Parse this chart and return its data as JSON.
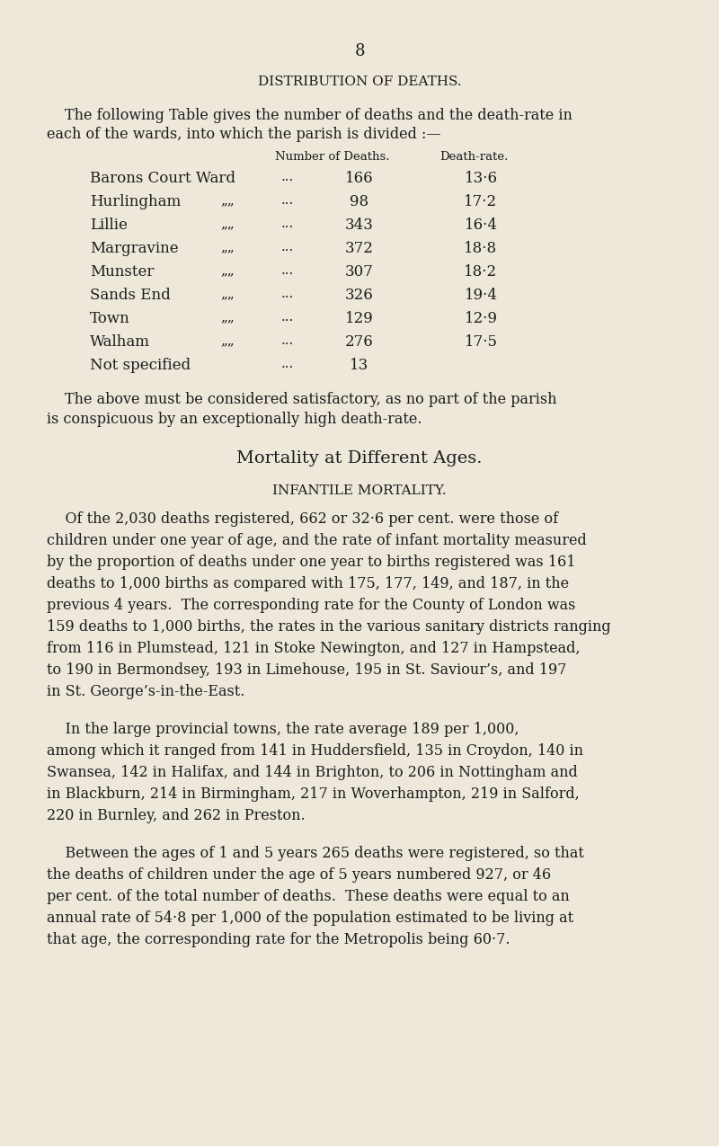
{
  "page_number": "8",
  "background_color": "#ede8da",
  "text_color": "#1c1c1c",
  "section_title": "DISTRIBUTION OF DEATHS.",
  "table_header_col1": "Number of Deaths.",
  "table_header_col2": "Death-rate.",
  "table_rows": [
    [
      "Barons Court Ward",
      "",
      "166",
      "13·6"
    ],
    [
      "Hurlingham",
      "„„",
      "98",
      "17·2"
    ],
    [
      "Lillie",
      "„„",
      "343",
      "16·4"
    ],
    [
      "Margravine",
      "„„",
      "372",
      "18·8"
    ],
    [
      "Munster",
      "„„",
      "307",
      "18·2"
    ],
    [
      "Sands End",
      "„„",
      "326",
      "19·4"
    ],
    [
      "Town",
      "„„",
      "129",
      "12·9"
    ],
    [
      "Walham",
      "„„",
      "276",
      "17·5"
    ],
    [
      "Not specified",
      "",
      "13",
      ""
    ]
  ],
  "intro_lines": [
    "The following Table gives the number of deaths and the death-rate in",
    "each of the wards, into which the parish is divided :—"
  ],
  "after_table_lines": [
    "The above must be considered satisfactory, as no part of the parish",
    "is conspicuous by an exceptionally high death-rate."
  ],
  "mortality_title": "Mortality at Different Ages.",
  "infantile_title": "INFANTILE MORTALITY.",
  "para1_lines": [
    "    Of the 2,030 deaths registered, 662 or 32·6 per cent. were those of",
    "children under one year of age, and the rate of infant mortality measured",
    "by the proportion of deaths under one year to births registered was 161",
    "deaths to 1,000 births as compared with 175, 177, 149, and 187, in the",
    "previous 4 years.  The corresponding rate for the County of London was",
    "159 deaths to 1,000 births, the rates in the various sanitary districts ranging",
    "from 116 in Plumstead, 121 in Stoke Newington, and 127 in Hampstead,",
    "to 190 in Bermondsey, 193 in Limehouse, 195 in St. Saviour’s, and 197",
    "in St. George’s-in-the-East."
  ],
  "para2_lines": [
    "    In the large provincial towns, the rate average 189 per 1,000,",
    "among which it ranged from 141 in Huddersfield, 135 in Croydon, 140 in",
    "Swansea, 142 in Halifax, and 144 in Brighton, to 206 in Nottingham and",
    "in Blackburn, 214 in Birmingham, 217 in Woverhampton, 219 in Salford,",
    "220 in Burnley, and 262 in Preston."
  ],
  "para3_lines": [
    "    Between the ages of 1 and 5 years 265 deaths were registered, so that",
    "the deaths of children under the age of 5 years numbered 927, or 46",
    "per cent. of the total number of deaths.  These deaths were equal to an",
    "annual rate of 54·8 per 1,000 of the population estimated to be living at",
    "that age, the corresponding rate for the Metropolis being 60·7."
  ]
}
